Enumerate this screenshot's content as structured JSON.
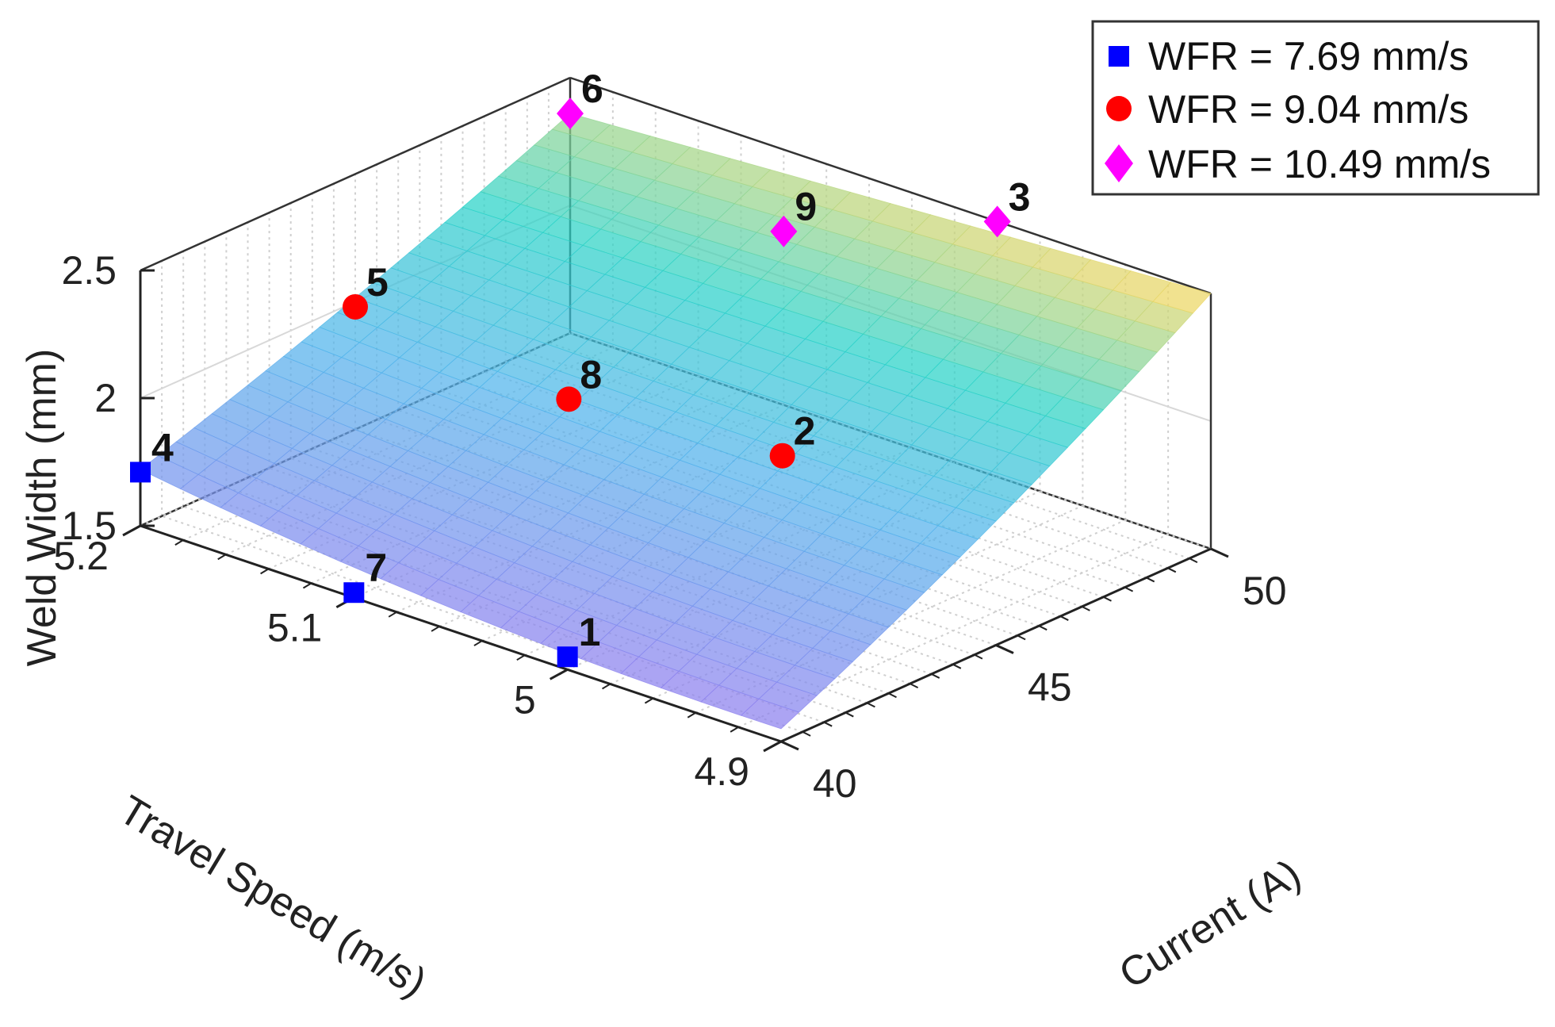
{
  "chart_data": {
    "type": "surface3d",
    "title": "",
    "zlabel": "Weld Width (mm)",
    "ylabel": "Travel Speed (m/s)",
    "xlabel": "Current (A)",
    "x_range": [
      40,
      50
    ],
    "y_range": [
      4.9,
      5.2
    ],
    "z_range": [
      1.5,
      2.5
    ],
    "x_ticks": [
      "40",
      "45",
      "50"
    ],
    "y_ticks": [
      "4.9",
      "5",
      "5.1",
      "5.2"
    ],
    "z_ticks": [
      "1.5",
      "2",
      "2.5"
    ],
    "surface": "quadratic fit of weld width over current and travel speed",
    "legend": [
      {
        "label": "WFR = 7.69 mm/s",
        "marker": "square",
        "color": "#0000ff"
      },
      {
        "label": "WFR = 9.04 mm/s",
        "marker": "circle",
        "color": "#ff0000"
      },
      {
        "label": "WFR = 10.49 mm/s",
        "marker": "diamond",
        "color": "#ff00ff"
      }
    ],
    "points": [
      {
        "id": "1",
        "current": 40,
        "speed": 5.0,
        "width": 1.55,
        "series": 0
      },
      {
        "id": "2",
        "current": 45,
        "speed": 5.0,
        "width": 1.96,
        "series": 1
      },
      {
        "id": "3",
        "current": 50,
        "speed": 5.0,
        "width": 2.5,
        "series": 2
      },
      {
        "id": "4",
        "current": 40,
        "speed": 5.2,
        "width": 1.71,
        "series": 0
      },
      {
        "id": "5",
        "current": 45,
        "speed": 5.2,
        "width": 1.98,
        "series": 1
      },
      {
        "id": "6",
        "current": 50,
        "speed": 5.2,
        "width": 2.36,
        "series": 2
      },
      {
        "id": "7",
        "current": 40,
        "speed": 5.1,
        "width": 1.52,
        "series": 0
      },
      {
        "id": "8",
        "current": 45,
        "speed": 5.1,
        "width": 1.9,
        "series": 1
      },
      {
        "id": "9",
        "current": 50,
        "speed": 5.1,
        "width": 2.18,
        "series": 2
      }
    ]
  }
}
